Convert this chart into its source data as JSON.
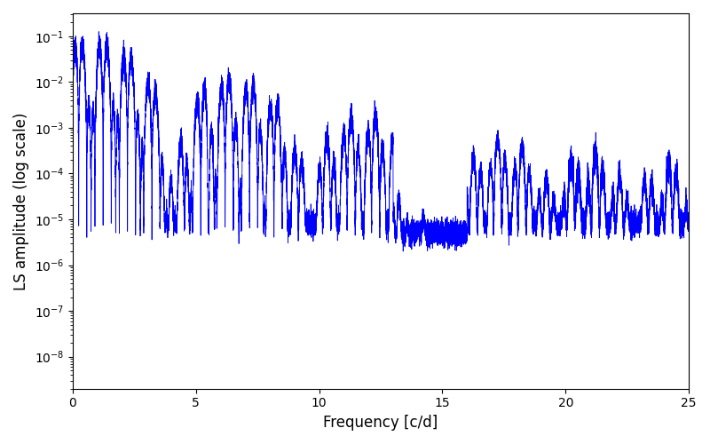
{
  "xlabel": "Frequency [c/d]",
  "ylabel": "LS amplitude (log scale)",
  "line_color": "#0000ff",
  "xlim": [
    0,
    25
  ],
  "ylim_log": [
    -8.7,
    -0.5
  ],
  "freq_max": 25.0,
  "n_points": 20000,
  "seed": 123,
  "xticks": [
    0,
    5,
    10,
    15,
    20,
    25
  ],
  "figsize": [
    8.0,
    5.0
  ],
  "dpi": 100,
  "background_color": "#ffffff",
  "label_fontsize": 12,
  "tick_fontsize": 10
}
